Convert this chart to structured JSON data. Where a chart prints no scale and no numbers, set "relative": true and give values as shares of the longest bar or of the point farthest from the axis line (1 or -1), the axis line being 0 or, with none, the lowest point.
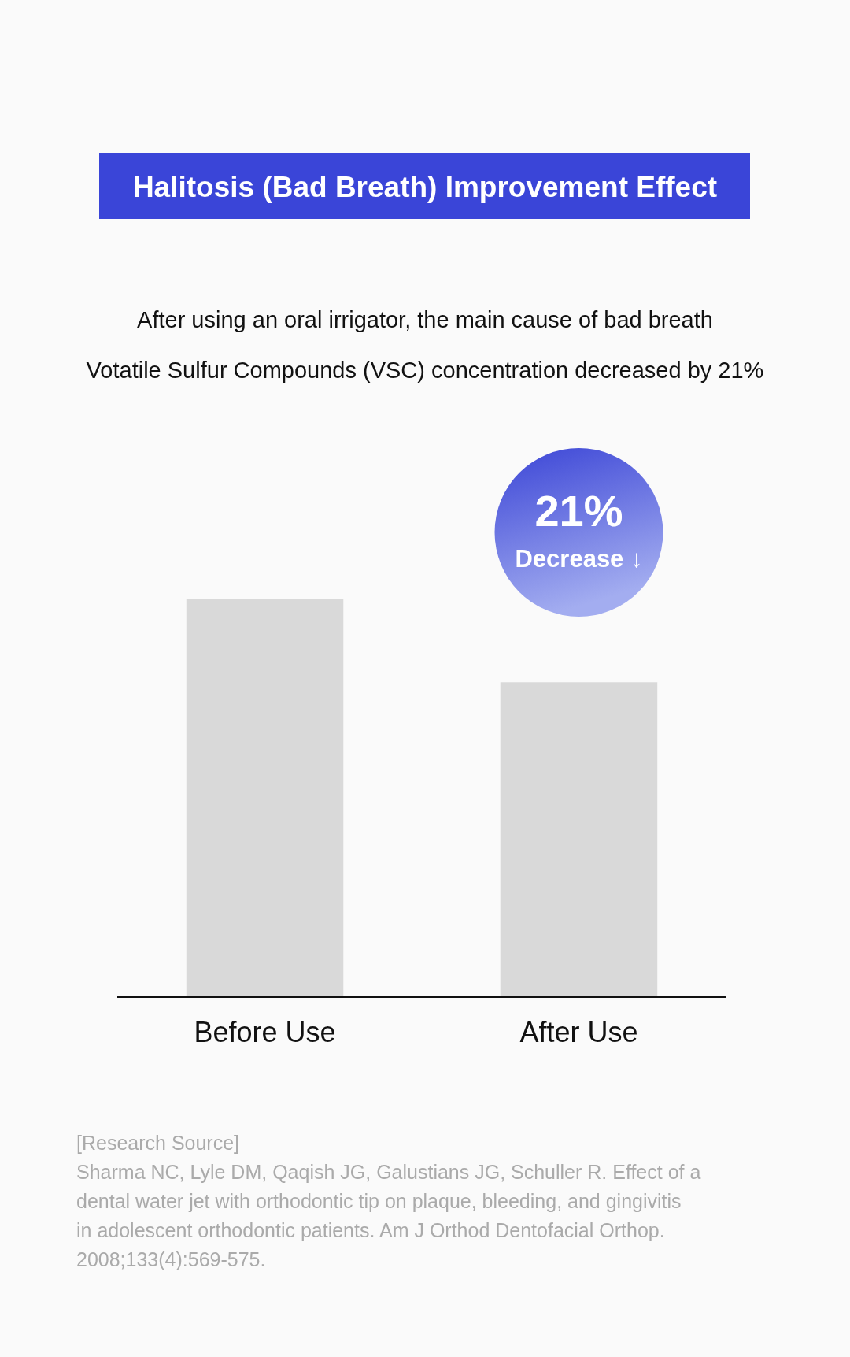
{
  "chart_data": {
    "type": "bar",
    "title": "Halitosis (Bad Breath) Improvement Effect",
    "subtitle": "After using an oral irrigator, the main cause of bad breath\nVotatile Sulfur Compounds (VSC) concentration decreased by 21%",
    "categories": [
      "Before Use",
      "After Use"
    ],
    "values": [
      1,
      0.79
    ],
    "color": "#d9d9d9",
    "relative": true,
    "annotations": [
      "21%",
      "Decrease ↓",
      "[Research Source]",
      "Sharma NC, Lyle DM, Qaqish JG, Galustians JG, Schuller R. Effect of a dental water jet with orthodontic tip on plaque, bleeding, and gingivitis in adolescent orthodontic patients. Am J Orthod Dentofacial Orthop. 2008;133(4):569-575."
    ]
  }
}
